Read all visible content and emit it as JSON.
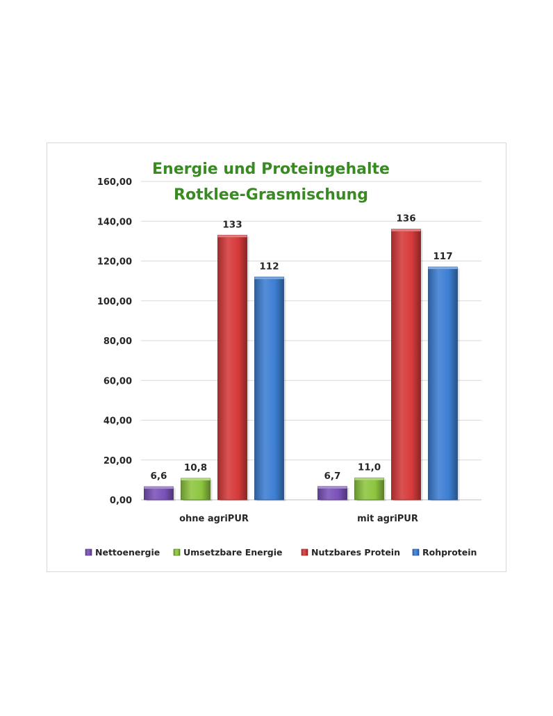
{
  "chart_data": {
    "type": "bar",
    "title_lines": [
      "Energie und Proteingehalte",
      "Rotklee-Grasmischung"
    ],
    "title_color": "#3a8a24",
    "categories": [
      "ohne agriPUR",
      "mit agriPUR"
    ],
    "series": [
      {
        "name": "Nettoenergie",
        "values": [
          6.6,
          6.7
        ],
        "labels": [
          "6,6",
          "6,7"
        ],
        "color": "#7b52b9"
      },
      {
        "name": "Umsetzbare Energie",
        "values": [
          10.8,
          11.0
        ],
        "labels": [
          "10,8",
          "11,0"
        ],
        "color": "#8dc63f"
      },
      {
        "name": "Nutzbares Protein",
        "values": [
          133,
          136
        ],
        "labels": [
          "133",
          "136"
        ],
        "color": "#d63a3a"
      },
      {
        "name": "Rohprotein",
        "values": [
          112,
          117
        ],
        "labels": [
          "112",
          "117"
        ],
        "color": "#3d7fd3"
      }
    ],
    "ylim": [
      0,
      160
    ],
    "yticks": [
      0,
      20,
      40,
      60,
      80,
      100,
      120,
      140,
      160
    ],
    "ytick_labels": [
      "0,00",
      "20,00",
      "40,00",
      "60,00",
      "80,00",
      "100,00",
      "120,00",
      "140,00",
      "160,00"
    ],
    "grid": true,
    "legend_position": "bottom"
  }
}
